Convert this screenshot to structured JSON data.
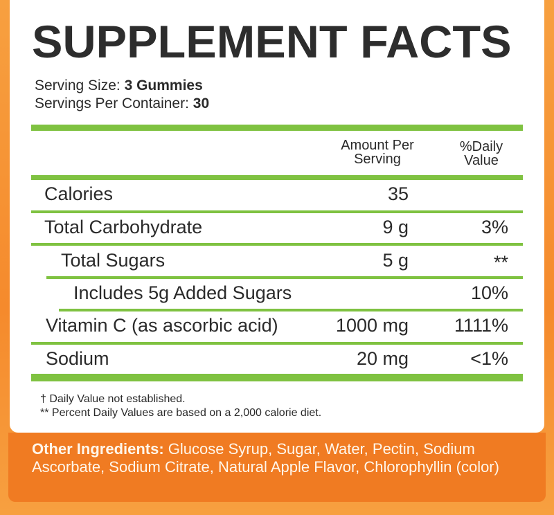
{
  "title": "SUPPLEMENT FACTS",
  "serving_size": {
    "label": "Serving Size:",
    "value": "3 Gummies"
  },
  "servings_per_container": {
    "label": "Servings Per Container:",
    "value": "30"
  },
  "columns": {
    "amount_line1": "Amount Per",
    "amount_line2": "Serving",
    "dv_line1": "%Daily",
    "dv_line2": "Value"
  },
  "rows": [
    {
      "name": "Calories",
      "amount": "35",
      "dv": ""
    },
    {
      "name": "Total Carbohydrate",
      "amount": "9 g",
      "dv": "3%"
    },
    {
      "name": "Total Sugars",
      "amount": "5 g",
      "dv": "**"
    },
    {
      "name": "Includes 5g Added Sugars",
      "amount": "",
      "dv": "10%"
    },
    {
      "name": "Vitamin C (as ascorbic acid)",
      "amount": "1000 mg",
      "dv": "1111%"
    },
    {
      "name": "Sodium",
      "amount": "20 mg",
      "dv": "<1%"
    }
  ],
  "footnotes": [
    "† Daily Value not established.",
    "** Percent Daily Values are based on a 2,000 calorie diet."
  ],
  "other_ingredients": {
    "label": "Other Ingredients:",
    "text": " Glucose Syrup, Sugar, Water, Pectin, Sodium Ascorbate, Sodium Citrate, Natural Apple Flavor, Chlorophyllin (color)"
  },
  "colors": {
    "accent_green": "#7fc241",
    "orange": "#f07b22"
  }
}
